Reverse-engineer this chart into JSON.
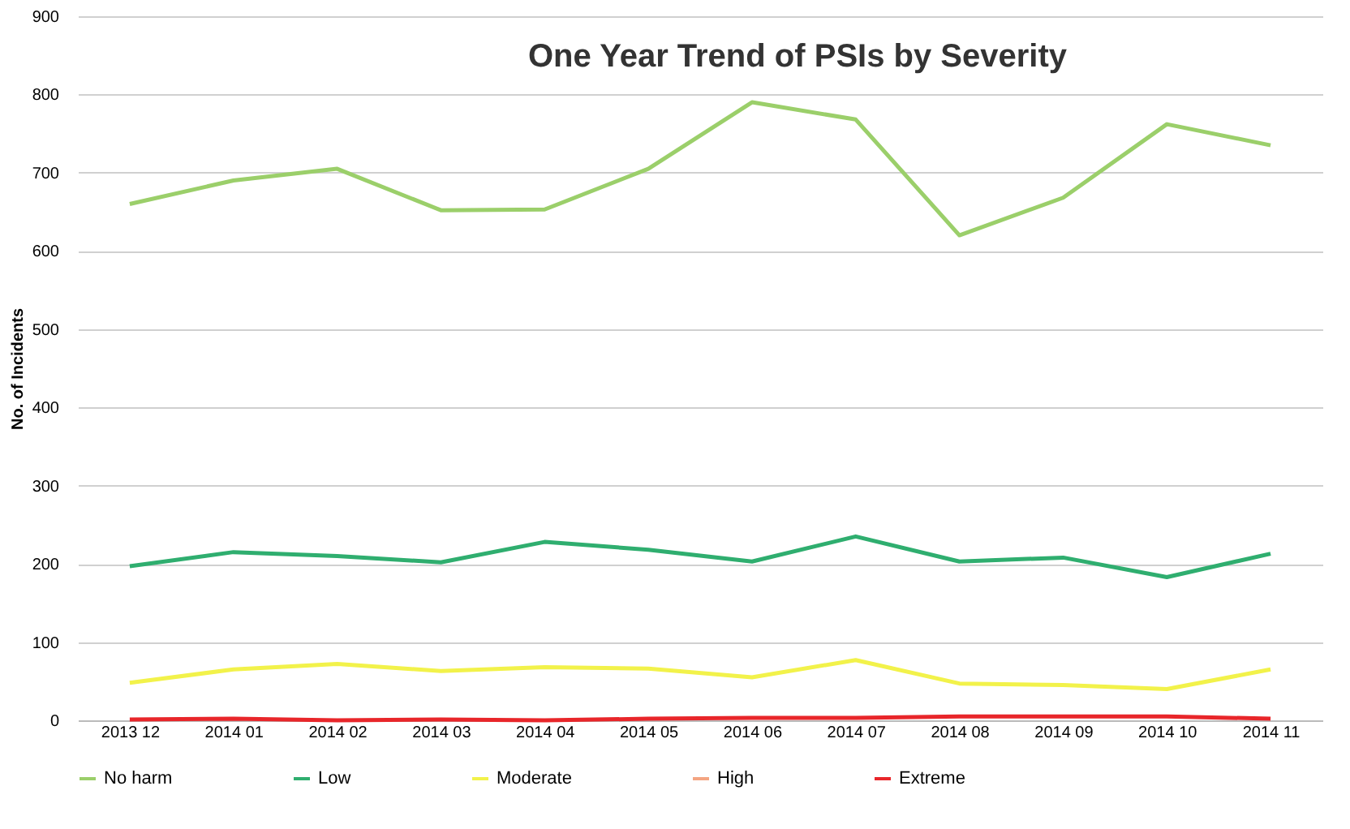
{
  "chart_data": {
    "type": "line",
    "title": "One Year Trend of PSIs by Severity",
    "ylabel": "No. of Incidents",
    "categories": [
      "2013 12",
      "2014 01",
      "2014 02",
      "2014 03",
      "2014 04",
      "2014 05",
      "2014 06",
      "2014 07",
      "2014 08",
      "2014 09",
      "2014 10",
      "2014 11"
    ],
    "series": [
      {
        "name": "No harm",
        "color": "#9bcf6a",
        "values": [
          660,
          690,
          705,
          652,
          653,
          705,
          790,
          768,
          620,
          668,
          762,
          735
        ]
      },
      {
        "name": "Low",
        "color": "#2fae6f",
        "values": [
          197,
          215,
          210,
          202,
          228,
          218,
          203,
          235,
          203,
          208,
          183,
          213
        ]
      },
      {
        "name": "Moderate",
        "color": "#f2f24a",
        "values": [
          48,
          65,
          72,
          63,
          68,
          66,
          55,
          77,
          47,
          45,
          40,
          65
        ]
      },
      {
        "name": "High",
        "color": "#f4a582",
        "values": [
          null,
          null,
          null,
          null,
          null,
          null,
          null,
          null,
          null,
          null,
          null,
          null
        ]
      },
      {
        "name": "Extreme",
        "color": "#e8262a",
        "values": [
          1,
          2,
          0,
          1,
          0,
          2,
          3,
          3,
          5,
          5,
          5,
          2
        ]
      }
    ],
    "ylim": [
      0,
      900
    ],
    "yticks": [
      0,
      100,
      200,
      300,
      400,
      500,
      600,
      700,
      800,
      900
    ],
    "grid": "y",
    "legend": "bottom",
    "marker": "none",
    "line_style": "solid"
  }
}
